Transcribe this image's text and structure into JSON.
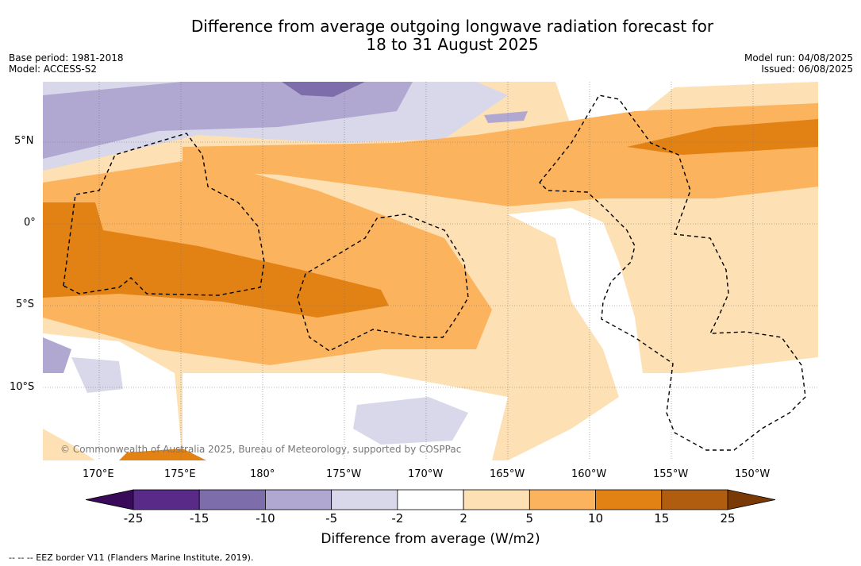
{
  "title_line1": "Difference from average outgoing longwave radiation forecast for",
  "title_line2": "18 to 31 August 2025",
  "base_period": "Base period: 1981-2018",
  "model": "Model: ACCESS-S2",
  "model_run": "Model run: 04/08/2025",
  "issued": "Issued: 06/08/2025",
  "lon_labels": [
    "170°E",
    "175°E",
    "180°",
    "175°W",
    "170°W",
    "165°W",
    "160°W",
    "155°W",
    "150°W"
  ],
  "lat_labels": [
    "5°N",
    "0°",
    "5°S",
    "10°S"
  ],
  "copyright": "© Commonwealth of Australia 2025, Bureau of Meteorology, supported by COSPPac",
  "colorbar": {
    "ticks": [
      "-25",
      "-15",
      "-10",
      "-5",
      "-2",
      "2",
      "5",
      "10",
      "15",
      "25"
    ],
    "colors": [
      "#5a2a88",
      "#7d6eab",
      "#b0a8d0",
      "#d8d8ea",
      "#ffffff",
      "#fde0b4",
      "#fbb35e",
      "#e28215",
      "#b05d10"
    ],
    "under_color": "#3a0a5a",
    "over_color": "#7a3a08",
    "label": "Difference from average (W/m2)"
  },
  "footnote": "-- -- -- EEZ border V11 (Flanders Marine Institute, 2019)."
}
